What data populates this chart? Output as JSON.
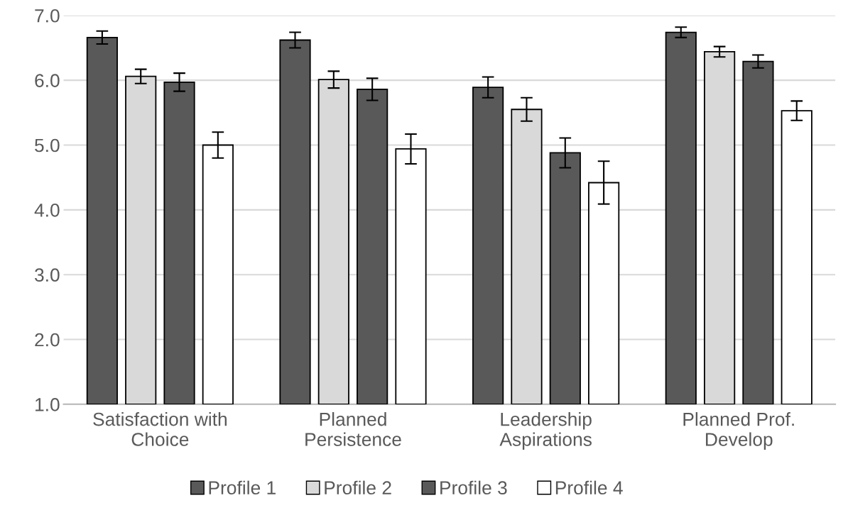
{
  "chart_data": {
    "type": "bar",
    "categories": [
      "Satisfaction with Choice",
      "Planned Persistence",
      "Leadership Aspirations",
      "Planned Prof. Develop"
    ],
    "series": [
      {
        "name": "Profile 1",
        "color": "#595959",
        "values": [
          6.66,
          6.62,
          5.89,
          6.74
        ],
        "errors": [
          0.1,
          0.12,
          0.16,
          0.08
        ]
      },
      {
        "name": "Profile 2",
        "color": "#d9d9d9",
        "values": [
          6.06,
          6.01,
          5.55,
          6.44
        ],
        "errors": [
          0.11,
          0.13,
          0.18,
          0.08
        ]
      },
      {
        "name": "Profile 3",
        "color": "#595959",
        "values": [
          5.97,
          5.86,
          4.88,
          6.29
        ],
        "errors": [
          0.14,
          0.17,
          0.23,
          0.1
        ]
      },
      {
        "name": "Profile 4",
        "color": "#ffffff",
        "values": [
          5.0,
          4.94,
          4.42,
          5.53
        ],
        "errors": [
          0.2,
          0.23,
          0.33,
          0.15
        ]
      }
    ],
    "ylim": [
      1,
      7
    ],
    "yticks": [
      {
        "value": 1,
        "label": "1.0"
      },
      {
        "value": 2,
        "label": "2.0"
      },
      {
        "value": 3,
        "label": "3.0"
      },
      {
        "value": 4,
        "label": "4.0"
      },
      {
        "value": 5,
        "label": "5.0"
      },
      {
        "value": 6,
        "label": "6.0"
      },
      {
        "value": 7,
        "label": "7.0"
      }
    ],
    "grid": "y",
    "legend": "bottom"
  }
}
